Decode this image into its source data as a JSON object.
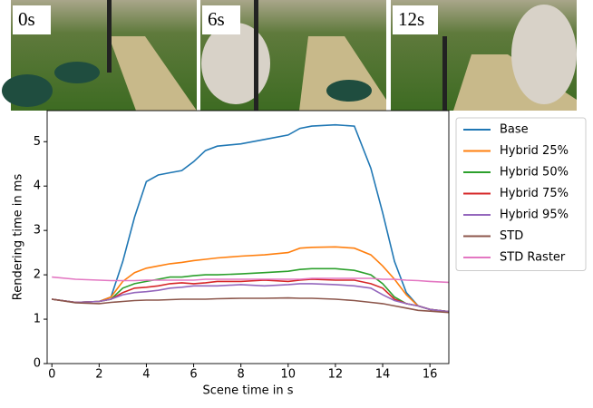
{
  "images": [
    {
      "label": "0s"
    },
    {
      "label": "6s"
    },
    {
      "label": "12s"
    }
  ],
  "chart_data": {
    "type": "line",
    "x_label": "Scene time in s",
    "y_label": "Rendering time in ms",
    "x": [
      0,
      1,
      2,
      2.5,
      3,
      3.5,
      4,
      4.5,
      5,
      5.5,
      6,
      6.5,
      7,
      8,
      9,
      10,
      10.5,
      11,
      12,
      12.8,
      13.5,
      14,
      14.5,
      15,
      15.5,
      16,
      16.8
    ],
    "series": [
      {
        "name": "Base",
        "color": "#1f77b4",
        "values": [
          1.45,
          1.38,
          1.4,
          1.5,
          2.3,
          3.3,
          4.1,
          4.25,
          4.3,
          4.35,
          4.55,
          4.8,
          4.9,
          4.95,
          5.05,
          5.15,
          5.3,
          5.35,
          5.38,
          5.35,
          4.4,
          3.4,
          2.3,
          1.6,
          1.3,
          1.22,
          1.17
        ]
      },
      {
        "name": "Hybrid 25%",
        "color": "#ff7f0e",
        "values": [
          1.45,
          1.38,
          1.4,
          1.5,
          1.85,
          2.05,
          2.15,
          2.2,
          2.25,
          2.28,
          2.32,
          2.35,
          2.38,
          2.42,
          2.45,
          2.5,
          2.6,
          2.62,
          2.63,
          2.6,
          2.45,
          2.2,
          1.9,
          1.55,
          1.3,
          1.22,
          1.17
        ]
      },
      {
        "name": "Hybrid 50%",
        "color": "#2ca02c",
        "values": [
          1.45,
          1.38,
          1.4,
          1.45,
          1.7,
          1.8,
          1.85,
          1.9,
          1.95,
          1.95,
          1.98,
          2.0,
          2.0,
          2.02,
          2.05,
          2.08,
          2.12,
          2.14,
          2.14,
          2.1,
          2.0,
          1.8,
          1.5,
          1.35,
          1.3,
          1.22,
          1.17
        ]
      },
      {
        "name": "Hybrid 75%",
        "color": "#d62728",
        "values": [
          1.45,
          1.38,
          1.4,
          1.45,
          1.6,
          1.7,
          1.72,
          1.75,
          1.8,
          1.82,
          1.8,
          1.82,
          1.85,
          1.85,
          1.88,
          1.85,
          1.88,
          1.9,
          1.88,
          1.88,
          1.8,
          1.7,
          1.45,
          1.35,
          1.3,
          1.22,
          1.17
        ]
      },
      {
        "name": "Hybrid 95%",
        "color": "#9467bd",
        "values": [
          1.45,
          1.38,
          1.4,
          1.45,
          1.55,
          1.6,
          1.62,
          1.65,
          1.7,
          1.72,
          1.75,
          1.75,
          1.75,
          1.78,
          1.75,
          1.78,
          1.8,
          1.8,
          1.78,
          1.75,
          1.7,
          1.55,
          1.42,
          1.35,
          1.3,
          1.22,
          1.17
        ]
      },
      {
        "name": "STD",
        "color": "#8c564b",
        "values": [
          1.45,
          1.37,
          1.35,
          1.38,
          1.4,
          1.42,
          1.43,
          1.43,
          1.44,
          1.45,
          1.45,
          1.45,
          1.46,
          1.47,
          1.47,
          1.48,
          1.47,
          1.47,
          1.45,
          1.42,
          1.38,
          1.35,
          1.3,
          1.25,
          1.2,
          1.18,
          1.15
        ]
      },
      {
        "name": "STD Raster",
        "color": "#e377c2",
        "values": [
          1.95,
          1.9,
          1.88,
          1.87,
          1.87,
          1.87,
          1.88,
          1.88,
          1.88,
          1.88,
          1.88,
          1.9,
          1.9,
          1.9,
          1.9,
          1.9,
          1.9,
          1.92,
          1.92,
          1.92,
          1.92,
          1.9,
          1.9,
          1.88,
          1.87,
          1.85,
          1.83
        ]
      }
    ],
    "xlim": [
      -0.2,
      16.8
    ],
    "ylim": [
      0,
      5.7
    ],
    "xticks": [
      0,
      2,
      4,
      6,
      8,
      10,
      12,
      14,
      16
    ],
    "yticks": [
      0,
      1,
      2,
      3,
      4,
      5
    ],
    "legend": "outside-right"
  }
}
